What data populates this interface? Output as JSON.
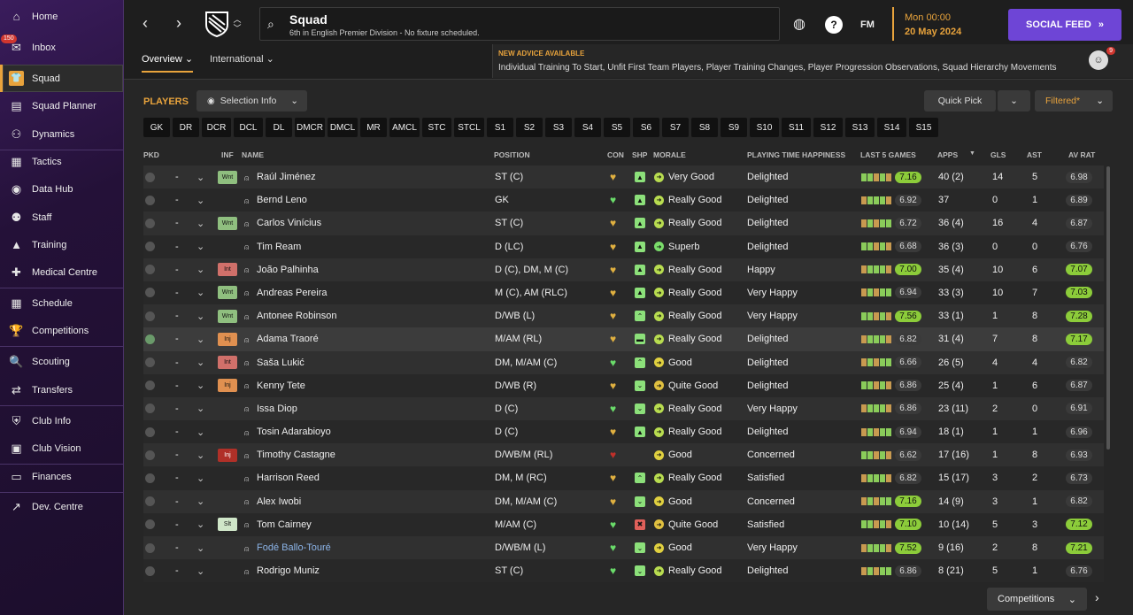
{
  "sidebar": {
    "items": [
      {
        "label": "Home",
        "icon": "home-icon",
        "glyph": "⌂"
      },
      {
        "label": "Inbox",
        "icon": "inbox-icon",
        "glyph": "✉",
        "badge": "150"
      },
      {
        "label": "Squad",
        "icon": "squad-shirt-icon",
        "glyph": "👕",
        "active": true
      },
      {
        "label": "Squad Planner",
        "icon": "clipboard-icon",
        "glyph": "▤"
      },
      {
        "label": "Dynamics",
        "icon": "people-icon",
        "glyph": "⚇"
      },
      {
        "label": "Tactics",
        "icon": "tactics-board-icon",
        "glyph": "▦"
      },
      {
        "label": "Data Hub",
        "icon": "data-hub-icon",
        "glyph": "◉"
      },
      {
        "label": "Staff",
        "icon": "staff-icon",
        "glyph": "⚉"
      },
      {
        "label": "Training",
        "icon": "training-cone-icon",
        "glyph": "▲"
      },
      {
        "label": "Medical Centre",
        "icon": "medical-icon",
        "glyph": "✚"
      },
      {
        "label": "Schedule",
        "icon": "calendar-icon",
        "glyph": "▦"
      },
      {
        "label": "Competitions",
        "icon": "trophy-icon",
        "glyph": "🏆"
      },
      {
        "label": "Scouting",
        "icon": "magnifier-icon",
        "glyph": "🔍"
      },
      {
        "label": "Transfers",
        "icon": "transfer-arrows-icon",
        "glyph": "⇄"
      },
      {
        "label": "Club Info",
        "icon": "shield-icon",
        "glyph": "⛨"
      },
      {
        "label": "Club Vision",
        "icon": "briefcase-icon",
        "glyph": "▣"
      },
      {
        "label": "Finances",
        "icon": "money-icon",
        "glyph": "▭"
      },
      {
        "label": "Dev. Centre",
        "icon": "dev-centre-icon",
        "glyph": "↗"
      }
    ]
  },
  "header": {
    "title": "Squad",
    "subtitle": "6th in English Premier Division - No fixture scheduled.",
    "fm_label": "FM",
    "help": "?",
    "date_time": "Mon 00:00",
    "date_day": "20 May 2024",
    "social_label": "SOCIAL FEED"
  },
  "tabs": [
    {
      "label": "Overview"
    },
    {
      "label": "International"
    }
  ],
  "advice": {
    "title": "NEW ADVICE AVAILABLE",
    "text": "Individual Training To Start, Unfit First Team Players, Player Training Changes, Player Progression Observations, Squad Hierarchy Movements",
    "count": "9"
  },
  "players_title": "PLAYERS",
  "selection_info": "Selection Info",
  "quick_pick": "Quick Pick",
  "filtered": "Filtered*",
  "positions": [
    "GK",
    "DR",
    "DCR",
    "DCL",
    "DL",
    "DMCR",
    "DMCL",
    "MR",
    "AMCL",
    "STC",
    "STCL",
    "S1",
    "S2",
    "S3",
    "S4",
    "S5",
    "S6",
    "S7",
    "S8",
    "S9",
    "S10",
    "S11",
    "S12",
    "S13",
    "S14",
    "S15"
  ],
  "columns": {
    "pkd": "PKD",
    "inf": "INF",
    "name": "NAME",
    "position": "POSITION",
    "con": "CON",
    "shp": "SHP",
    "morale": "MORALE",
    "pth": "PLAYING TIME HAPPINESS",
    "last5": "LAST 5 GAMES",
    "apps": "APPS",
    "gls": "GLS",
    "ast": "AST",
    "avrat": "AV RAT"
  },
  "players": [
    {
      "pkd": false,
      "sel": "-",
      "inf": "Wnt",
      "name": "Raúl Jiménez",
      "position": "ST (C)",
      "con": "gold",
      "shp": "up",
      "morale": "Very Good",
      "pth": "Delighted",
      "last5": 7.16,
      "apps": "40 (2)",
      "gls": "14",
      "ast": "5",
      "avrat": 6.98
    },
    {
      "pkd": false,
      "sel": "-",
      "inf": "",
      "name": "Bernd Leno",
      "position": "GK",
      "con": "green",
      "shp": "up",
      "morale": "Really Good",
      "pth": "Delighted",
      "last5": 6.92,
      "apps": "37",
      "gls": "0",
      "ast": "1",
      "avrat": 6.89
    },
    {
      "pkd": false,
      "sel": "-",
      "inf": "Wnt",
      "name": "Carlos Vinícius",
      "position": "ST (C)",
      "con": "gold",
      "shp": "up",
      "morale": "Really Good",
      "pth": "Delighted",
      "last5": 6.72,
      "apps": "36 (4)",
      "gls": "16",
      "ast": "4",
      "avrat": 6.87
    },
    {
      "pkd": false,
      "sel": "-",
      "inf": "",
      "name": "Tim Ream",
      "position": "D (LC)",
      "con": "gold",
      "shp": "up",
      "morale": "Superb",
      "pth": "Delighted",
      "last5": 6.68,
      "apps": "36 (3)",
      "gls": "0",
      "ast": "0",
      "avrat": 6.76
    },
    {
      "pkd": false,
      "sel": "-",
      "inf": "Int",
      "name": "João Palhinha",
      "position": "D (C), DM, M (C)",
      "con": "gold",
      "shp": "up",
      "morale": "Really Good",
      "pth": "Happy",
      "last5": 7.0,
      "apps": "35 (4)",
      "gls": "10",
      "ast": "6",
      "avrat": 7.07
    },
    {
      "pkd": false,
      "sel": "-",
      "inf": "Wnt",
      "name": "Andreas Pereira",
      "position": "M (C), AM (RLC)",
      "con": "gold",
      "shp": "up",
      "morale": "Really Good",
      "pth": "Very Happy",
      "last5": 6.94,
      "apps": "33 (3)",
      "gls": "10",
      "ast": "7",
      "avrat": 7.03
    },
    {
      "pkd": false,
      "sel": "-",
      "inf": "Wnt",
      "name": "Antonee Robinson",
      "position": "D/WB (L)",
      "con": "gold",
      "shp": "peak",
      "morale": "Really Good",
      "pth": "Very Happy",
      "last5": 7.56,
      "apps": "33 (1)",
      "gls": "1",
      "ast": "8",
      "avrat": 7.28
    },
    {
      "pkd": true,
      "sel": "-",
      "inf": "Inj",
      "name": "Adama Traoré",
      "position": "M/AM (RL)",
      "con": "gold",
      "shp": "flat",
      "morale": "Really Good",
      "pth": "Delighted",
      "last5": 6.82,
      "apps": "31 (4)",
      "gls": "7",
      "ast": "8",
      "avrat": 7.17
    },
    {
      "pkd": false,
      "sel": "-",
      "inf": "Int",
      "name": "Saša Lukić",
      "position": "DM, M/AM (C)",
      "con": "green",
      "shp": "peak",
      "morale": "Good",
      "pth": "Delighted",
      "last5": 6.66,
      "apps": "26 (5)",
      "gls": "4",
      "ast": "4",
      "avrat": 6.82
    },
    {
      "pkd": false,
      "sel": "-",
      "inf": "Inj",
      "name": "Kenny Tete",
      "position": "D/WB (R)",
      "con": "gold",
      "shp": "down",
      "morale": "Quite Good",
      "pth": "Delighted",
      "last5": 6.86,
      "apps": "25 (4)",
      "gls": "1",
      "ast": "6",
      "avrat": 6.87
    },
    {
      "pkd": false,
      "sel": "-",
      "inf": "",
      "name": "Issa Diop",
      "position": "D (C)",
      "con": "green",
      "shp": "down",
      "morale": "Really Good",
      "pth": "Very Happy",
      "last5": 6.86,
      "apps": "23 (11)",
      "gls": "2",
      "ast": "0",
      "avrat": 6.91
    },
    {
      "pkd": false,
      "sel": "-",
      "inf": "",
      "name": "Tosin Adarabioyo",
      "position": "D (C)",
      "con": "gold",
      "shp": "up",
      "morale": "Really Good",
      "pth": "Delighted",
      "last5": 6.94,
      "apps": "18 (1)",
      "gls": "1",
      "ast": "1",
      "avrat": 6.96
    },
    {
      "pkd": false,
      "sel": "-",
      "inf": "Inj",
      "name": "Timothy Castagne",
      "position": "D/WB/M (RL)",
      "con": "red",
      "shp": "none",
      "morale": "Good",
      "pth": "Concerned",
      "last5": 6.62,
      "apps": "17 (16)",
      "gls": "1",
      "ast": "8",
      "avrat": 6.93
    },
    {
      "pkd": false,
      "sel": "-",
      "inf": "",
      "name": "Harrison Reed",
      "position": "DM, M (RC)",
      "con": "gold",
      "shp": "peak",
      "morale": "Really Good",
      "pth": "Satisfied",
      "last5": 6.82,
      "apps": "15 (17)",
      "gls": "3",
      "ast": "2",
      "avrat": 6.73
    },
    {
      "pkd": false,
      "sel": "-",
      "inf": "",
      "name": "Alex Iwobi",
      "position": "DM, M/AM (C)",
      "con": "gold",
      "shp": "down",
      "morale": "Good",
      "pth": "Concerned",
      "last5": 7.16,
      "apps": "14 (9)",
      "gls": "3",
      "ast": "1",
      "avrat": 6.82
    },
    {
      "pkd": false,
      "sel": "-",
      "inf": "Slt",
      "name": "Tom Cairney",
      "position": "M/AM (C)",
      "con": "green",
      "shp": "bad",
      "morale": "Quite Good",
      "pth": "Satisfied",
      "last5": 7.1,
      "apps": "10 (14)",
      "gls": "5",
      "ast": "3",
      "avrat": 7.12
    },
    {
      "pkd": false,
      "sel": "-",
      "inf": "",
      "name": "Fodé Ballo-Touré",
      "position": "D/WB/M (L)",
      "con": "green",
      "shp": "down",
      "morale": "Good",
      "pth": "Very Happy",
      "last5": 7.52,
      "apps": "9 (16)",
      "gls": "2",
      "ast": "8",
      "avrat": 7.21
    },
    {
      "pkd": false,
      "sel": "-",
      "inf": "",
      "name": "Rodrigo Muniz",
      "position": "ST (C)",
      "con": "green",
      "shp": "down",
      "morale": "Really Good",
      "pth": "Delighted",
      "last5": 6.86,
      "apps": "8 (21)",
      "gls": "5",
      "ast": "1",
      "avrat": 6.76
    }
  ],
  "competitions_label": "Competitions"
}
